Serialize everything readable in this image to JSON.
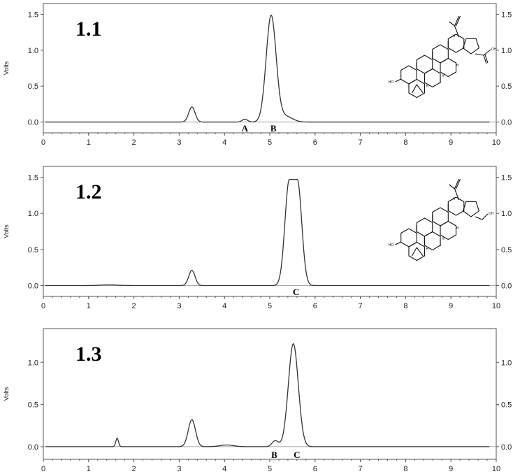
{
  "chart_data": [
    {
      "type": "line",
      "panel_label": "1.1",
      "ylabel": "Volts",
      "xlim": [
        0,
        10
      ],
      "ylim": [
        -0.15,
        1.65
      ],
      "x_ticks": [
        "0",
        "1",
        "2",
        "3",
        "4",
        "5",
        "6",
        "7",
        "8",
        "9",
        "10"
      ],
      "y_ticks": [
        "0.0",
        "0.5",
        "1.0",
        "1.5"
      ],
      "series": [
        {
          "peaks": [
            {
              "x": 3.28,
              "height": 0.21,
              "width": 0.07
            },
            {
              "x": 4.45,
              "height": 0.04,
              "width": 0.06
            },
            {
              "x": 5.03,
              "height": 1.48,
              "width": 0.11
            },
            {
              "x": 5.35,
              "height": 0.08,
              "width": 0.15
            }
          ]
        }
      ],
      "annotations": [
        {
          "text": "A",
          "x": 4.45
        },
        {
          "text": "B",
          "x": 5.08
        }
      ],
      "structure_labels": {
        "hydroxyl": "HO",
        "acid": "OH",
        "h": "H"
      }
    },
    {
      "type": "line",
      "panel_label": "1.2",
      "ylabel": "Volts",
      "xlim": [
        0,
        10
      ],
      "ylim": [
        -0.15,
        1.65
      ],
      "x_ticks": [
        "0",
        "1",
        "2",
        "3",
        "4",
        "5",
        "6",
        "7",
        "8",
        "9",
        "10"
      ],
      "y_ticks": [
        "0.0",
        "0.5",
        "1.0",
        "1.5"
      ],
      "series": [
        {
          "peaks": [
            {
              "x": 1.45,
              "height": 0.01,
              "width": 0.2
            },
            {
              "x": 3.28,
              "height": 0.21,
              "width": 0.07
            },
            {
              "x": 5.52,
              "height": 1.47,
              "width": 0.16,
              "flat_top": true
            }
          ]
        }
      ],
      "annotations": [
        {
          "text": "C",
          "x": 5.58
        }
      ],
      "structure_labels": {
        "hydroxyl": "HO",
        "alcohol": "OH",
        "h": "H"
      }
    },
    {
      "type": "line",
      "panel_label": "1.3",
      "ylabel": "Volts",
      "xlim": [
        0,
        10
      ],
      "ylim": [
        -0.15,
        1.4
      ],
      "x_ticks": [
        "0",
        "1",
        "2",
        "3",
        "4",
        "5",
        "6",
        "7",
        "8",
        "9",
        "10"
      ],
      "y_ticks": [
        "0.0",
        "0.5",
        "1.0"
      ],
      "series": [
        {
          "peaks": [
            {
              "x": 1.63,
              "height": 0.1,
              "width": 0.03
            },
            {
              "x": 3.28,
              "height": 0.32,
              "width": 0.08
            },
            {
              "x": 4.05,
              "height": 0.02,
              "width": 0.15
            },
            {
              "x": 5.12,
              "height": 0.07,
              "width": 0.07
            },
            {
              "x": 5.52,
              "height": 1.22,
              "width": 0.11
            }
          ]
        }
      ],
      "annotations": [
        {
          "text": "B",
          "x": 5.1
        },
        {
          "text": "C",
          "x": 5.6
        }
      ]
    }
  ]
}
